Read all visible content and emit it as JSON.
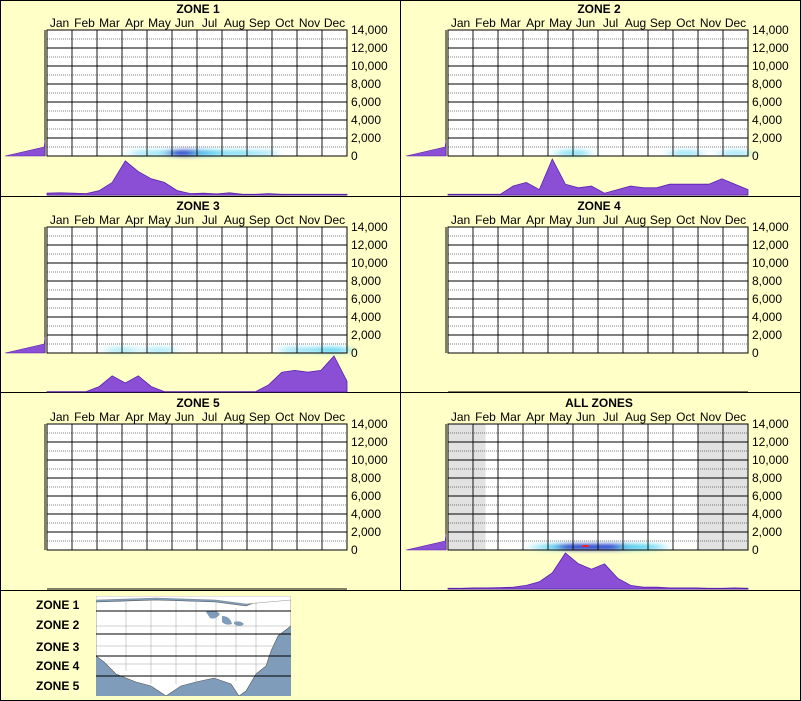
{
  "months": [
    "Jan",
    "Feb",
    "Mar",
    "Apr",
    "May",
    "Jun",
    "Jul",
    "Aug",
    "Sep",
    "Oct",
    "Nov",
    "Dec"
  ],
  "y_ticks": [
    "14,000",
    "12,000",
    "10,000",
    "8,000",
    "6,000",
    "4,000",
    "2,000",
    "0"
  ],
  "legend": {
    "labels": [
      "ZONE 1",
      "ZONE 2",
      "ZONE 3",
      "ZONE 4",
      "ZONE 5"
    ]
  },
  "colors": {
    "background": "#ffffc8",
    "grid_bg": "#ffffff",
    "density_fill": "#8b4fd6",
    "density_stroke": "#5a1fb0",
    "heat_blue": "#1a3cc8",
    "heat_cyan": "#4fd2f0",
    "shade": "#e2e2e2"
  },
  "chart_data": [
    {
      "type": "heatmap",
      "title": "ZONE 1",
      "x": [
        "Jan",
        "Feb",
        "Mar",
        "Apr",
        "May",
        "Jun",
        "Jul",
        "Aug",
        "Sep",
        "Oct",
        "Nov",
        "Dec"
      ],
      "ylim": [
        0,
        14000
      ],
      "month_density": [
        0.05,
        0.06,
        0.05,
        0.04,
        0.12,
        0.35,
        0.95,
        0.65,
        0.45,
        0.35,
        0.12,
        0.04,
        0.05,
        0.03,
        0.06,
        0.02,
        0.02,
        0.04,
        0.02,
        0.02,
        0.02,
        0.02,
        0.02,
        0.02
      ],
      "elevation_density": [
        0.95,
        0.2,
        0.05,
        0.02,
        0.0,
        0.0,
        0.0,
        0.0
      ],
      "heat_cells": [
        {
          "m": 4.5,
          "e": 0,
          "v": 0.3
        },
        {
          "m": 5,
          "e": 0,
          "v": 1.0
        },
        {
          "m": 5.5,
          "e": 0,
          "v": 0.8
        },
        {
          "m": 6,
          "e": 0,
          "v": 0.55
        },
        {
          "m": 7,
          "e": 0,
          "v": 0.4
        },
        {
          "m": 3.5,
          "e": 0,
          "v": 0.2
        },
        {
          "m": 8,
          "e": 0,
          "v": 0.2
        }
      ],
      "shaded_months": []
    },
    {
      "type": "heatmap",
      "title": "ZONE 2",
      "x": [
        "Jan",
        "Feb",
        "Mar",
        "Apr",
        "May",
        "Jun",
        "Jul",
        "Aug",
        "Sep",
        "Oct",
        "Nov",
        "Dec"
      ],
      "ylim": [
        0,
        14000
      ],
      "month_density": [
        0.02,
        0.02,
        0.02,
        0.02,
        0.02,
        0.25,
        0.35,
        0.15,
        1.0,
        0.3,
        0.2,
        0.25,
        0.05,
        0.15,
        0.25,
        0.2,
        0.2,
        0.3,
        0.3,
        0.3,
        0.3,
        0.45,
        0.3,
        0.15
      ],
      "elevation_density": [
        0.95,
        0.1,
        0.02,
        0.0,
        0.0,
        0.0,
        0.0,
        0.0
      ],
      "heat_cells": [
        {
          "m": 4.5,
          "e": 0,
          "v": 0.4
        },
        {
          "m": 9,
          "e": 0,
          "v": 0.25
        },
        {
          "m": 11,
          "e": 0,
          "v": 0.2
        }
      ],
      "shaded_months": []
    },
    {
      "type": "heatmap",
      "title": "ZONE 3",
      "x": [
        "Jan",
        "Feb",
        "Mar",
        "Apr",
        "May",
        "Jun",
        "Jul",
        "Aug",
        "Sep",
        "Oct",
        "Nov",
        "Dec"
      ],
      "ylim": [
        0,
        14000
      ],
      "month_density": [
        0.01,
        0.01,
        0.01,
        0.01,
        0.15,
        0.45,
        0.25,
        0.45,
        0.15,
        0.01,
        0.01,
        0.01,
        0.01,
        0.01,
        0.01,
        0.01,
        0.01,
        0.2,
        0.55,
        0.6,
        0.55,
        0.6,
        1.0,
        0.3
      ],
      "elevation_density": [
        0.95,
        0.1,
        0.0,
        0.0,
        0.0,
        0.0,
        0.0,
        0.0
      ],
      "heat_cells": [
        {
          "m": 2.5,
          "e": 0,
          "v": 0.15
        },
        {
          "m": 4,
          "e": 0,
          "v": 0.15
        },
        {
          "m": 9.5,
          "e": 0,
          "v": 0.25
        },
        {
          "m": 10.5,
          "e": 0,
          "v": 0.3
        },
        {
          "m": 11,
          "e": 0,
          "v": 0.5
        }
      ],
      "shaded_months": []
    },
    {
      "type": "heatmap",
      "title": "ZONE 4",
      "x": [
        "Jan",
        "Feb",
        "Mar",
        "Apr",
        "May",
        "Jun",
        "Jul",
        "Aug",
        "Sep",
        "Oct",
        "Nov",
        "Dec"
      ],
      "ylim": [
        0,
        14000
      ],
      "month_density": [],
      "elevation_density": [],
      "heat_cells": [],
      "shaded_months": []
    },
    {
      "type": "heatmap",
      "title": "ZONE 5",
      "x": [
        "Jan",
        "Feb",
        "Mar",
        "Apr",
        "May",
        "Jun",
        "Jul",
        "Aug",
        "Sep",
        "Oct",
        "Nov",
        "Dec"
      ],
      "ylim": [
        0,
        14000
      ],
      "month_density": [],
      "elevation_density": [],
      "heat_cells": [],
      "shaded_months": []
    },
    {
      "type": "heatmap",
      "title": "ALL ZONES",
      "x": [
        "Jan",
        "Feb",
        "Mar",
        "Apr",
        "May",
        "Jun",
        "Jul",
        "Aug",
        "Sep",
        "Oct",
        "Nov",
        "Dec"
      ],
      "ylim": [
        0,
        14000
      ],
      "month_density": [
        0.02,
        0.02,
        0.03,
        0.03,
        0.04,
        0.05,
        0.1,
        0.2,
        0.45,
        1.0,
        0.7,
        0.55,
        0.7,
        0.3,
        0.1,
        0.05,
        0.05,
        0.03,
        0.03,
        0.03,
        0.02,
        0.02,
        0.03,
        0.02
      ],
      "elevation_density": [
        0.95,
        0.15,
        0.02,
        0.0,
        0.0,
        0.0,
        0.0,
        0.0
      ],
      "heat_cells": [
        {
          "m": 3.5,
          "e": 0,
          "v": 0.25
        },
        {
          "m": 4,
          "e": 0,
          "v": 0.5
        },
        {
          "m": 4.5,
          "e": 0,
          "v": 0.8
        },
        {
          "m": 5,
          "e": 0,
          "v": 1.0
        },
        {
          "m": 5.5,
          "e": 0,
          "v": 0.9
        },
        {
          "m": 6,
          "e": 0,
          "v": 0.8
        },
        {
          "m": 6.5,
          "e": 0,
          "v": 0.7
        },
        {
          "m": 7,
          "e": 0,
          "v": 0.6
        },
        {
          "m": 7.5,
          "e": 0,
          "v": 0.4
        }
      ],
      "peak_marker": {
        "m": 5,
        "e": 0
      },
      "shaded_months": [
        0,
        10,
        11
      ]
    }
  ]
}
